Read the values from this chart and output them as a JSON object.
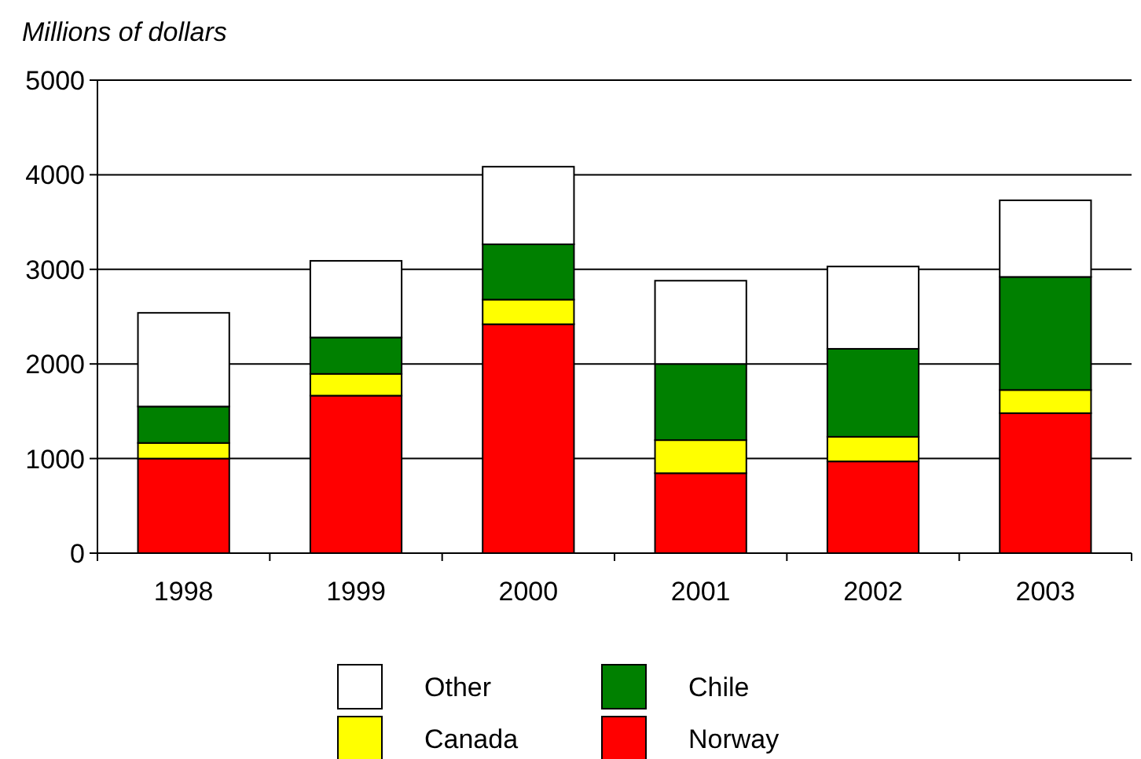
{
  "chart_data": {
    "type": "bar",
    "ylabel": "Millions of dollars",
    "stacked": true,
    "categories": [
      "1998",
      "1999",
      "2000",
      "2001",
      "2002",
      "2003"
    ],
    "series": [
      {
        "name": "Norway",
        "color": "#ff0000",
        "values": [
          1000,
          1665,
          2420,
          845,
          970,
          1480
        ]
      },
      {
        "name": "Canada",
        "color": "#ffff00",
        "values": [
          165,
          230,
          260,
          350,
          260,
          245
        ]
      },
      {
        "name": "Chile",
        "color": "#008000",
        "values": [
          385,
          385,
          585,
          805,
          930,
          1195
        ]
      },
      {
        "name": "Other",
        "color": "#ffffff",
        "values": [
          990,
          810,
          820,
          880,
          870,
          810
        ]
      }
    ],
    "ylim": [
      0,
      5000
    ],
    "yticks": [
      0,
      1000,
      2000,
      3000,
      4000,
      5000
    ],
    "grid": "y",
    "legend": "bottom"
  }
}
